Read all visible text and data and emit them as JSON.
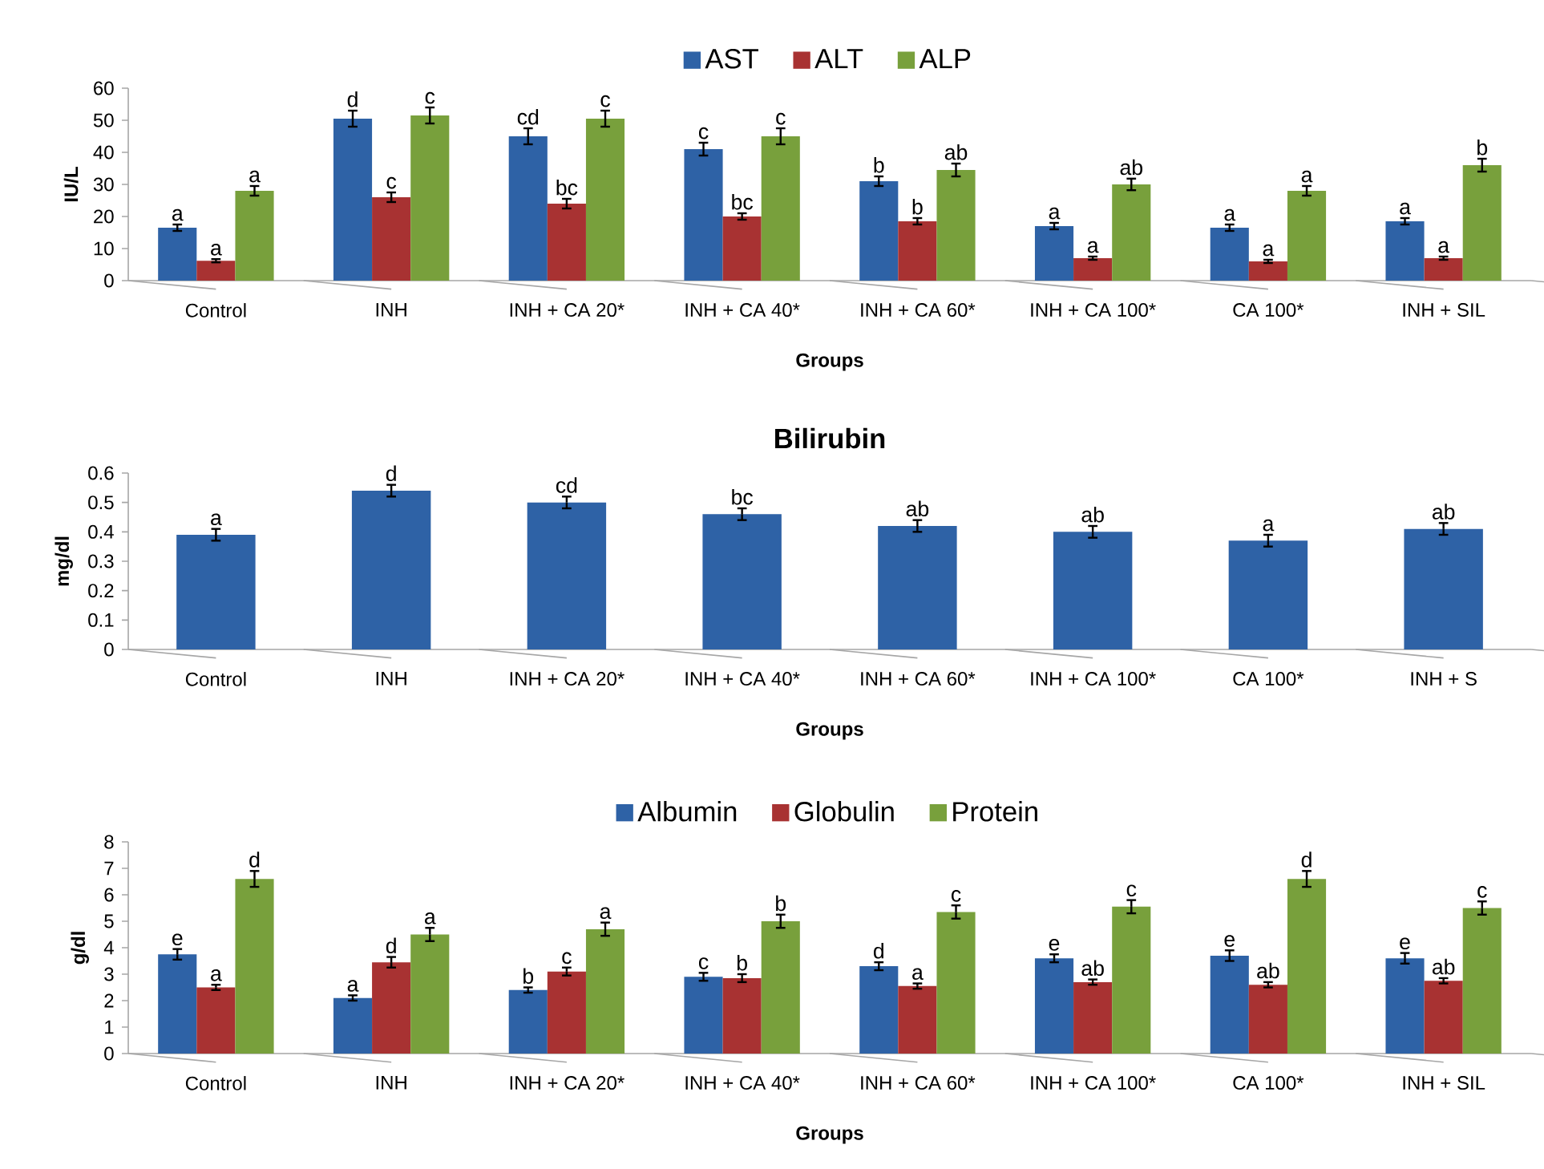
{
  "chart_data": [
    {
      "type": "bar",
      "ylabel": "IU/L",
      "xlabel": "Groups",
      "legend": "top",
      "categories": [
        "Control",
        "INH",
        "INH + CA 20*",
        "INH + CA 40*",
        "INH + CA 60*",
        "INH + CA 100*",
        "CA 100*",
        "INH + SIL"
      ],
      "ylim": [
        0,
        60
      ],
      "yticks": [
        0,
        10,
        20,
        30,
        40,
        50,
        60
      ],
      "series": [
        {
          "name": "AST",
          "color": "#2e62a6",
          "values": [
            16.5,
            50.5,
            45,
            41,
            31,
            17,
            16.5,
            18.5
          ],
          "errors": [
            1,
            2.5,
            2.5,
            2,
            1.5,
            1,
            1,
            1
          ],
          "value_labels": [
            "a",
            "d",
            "cd",
            "c",
            "b",
            "a",
            "a",
            "a"
          ]
        },
        {
          "name": "ALT",
          "color": "#a83232",
          "values": [
            6.2,
            26,
            24,
            20,
            18.5,
            7,
            6,
            7
          ],
          "errors": [
            0.5,
            1.5,
            1.5,
            1,
            1,
            0.5,
            0.5,
            0.5
          ],
          "value_labels": [
            "a",
            "c",
            "bc",
            "bc",
            "b",
            "a",
            "a",
            "a"
          ]
        },
        {
          "name": "ALP",
          "color": "#78a03c",
          "values": [
            28,
            51.5,
            50.5,
            45,
            34.5,
            30,
            28,
            36
          ],
          "errors": [
            1.5,
            2.5,
            2.5,
            2.5,
            2,
            1.8,
            1.5,
            2
          ],
          "value_labels": [
            "a",
            "c",
            "c",
            "c",
            "ab",
            "ab",
            "a",
            "b"
          ]
        }
      ]
    },
    {
      "type": "bar",
      "title": "Bilirubin",
      "ylabel": "mg/dl",
      "xlabel": "Groups",
      "categories": [
        "Control",
        "INH",
        "INH + CA 20*",
        "INH + CA 40*",
        "INH + CA 60*",
        "INH + CA 100*",
        "CA 100*",
        "INH + S"
      ],
      "ylim": [
        0,
        0.6
      ],
      "yticks": [
        0,
        0.1,
        0.2,
        0.3,
        0.4,
        0.5,
        0.6
      ],
      "series": [
        {
          "color": "#2e62a6",
          "values": [
            0.39,
            0.54,
            0.5,
            0.46,
            0.42,
            0.4,
            0.37,
            0.41
          ],
          "errors": [
            0.02,
            0.02,
            0.02,
            0.02,
            0.02,
            0.02,
            0.02,
            0.02
          ],
          "value_labels": [
            "a",
            "d",
            "cd",
            "bc",
            "ab",
            "ab",
            "a",
            "ab"
          ]
        }
      ]
    },
    {
      "type": "bar",
      "ylabel": "g/dl",
      "xlabel": "Groups",
      "legend": "top",
      "categories": [
        "Control",
        "INH",
        "INH + CA 20*",
        "INH + CA 40*",
        "INH + CA 60*",
        "INH + CA 100*",
        "CA 100*",
        "INH + SIL"
      ],
      "ylim": [
        0,
        8
      ],
      "yticks": [
        0,
        1,
        2,
        3,
        4,
        5,
        6,
        7,
        8
      ],
      "series": [
        {
          "name": "Albumin",
          "color": "#2e62a6",
          "values": [
            3.75,
            2.1,
            2.4,
            2.9,
            3.3,
            3.6,
            3.7,
            3.6
          ],
          "errors": [
            0.2,
            0.1,
            0.1,
            0.15,
            0.15,
            0.15,
            0.2,
            0.2
          ],
          "value_labels": [
            "e",
            "a",
            "b",
            "c",
            "d",
            "e",
            "e",
            "e"
          ]
        },
        {
          "name": "Globulin",
          "color": "#a83232",
          "values": [
            2.5,
            3.45,
            3.1,
            2.85,
            2.55,
            2.7,
            2.6,
            2.75
          ],
          "errors": [
            0.1,
            0.2,
            0.15,
            0.15,
            0.1,
            0.1,
            0.1,
            0.1
          ],
          "value_labels": [
            "a",
            "d",
            "c",
            "b",
            "a",
            "ab",
            "ab",
            "ab"
          ]
        },
        {
          "name": "Protein",
          "color": "#78a03c",
          "values": [
            6.6,
            4.5,
            4.7,
            5.0,
            5.35,
            5.55,
            6.6,
            5.5
          ],
          "errors": [
            0.3,
            0.25,
            0.25,
            0.25,
            0.25,
            0.25,
            0.3,
            0.25
          ],
          "value_labels": [
            "d",
            "a",
            "a",
            "b",
            "c",
            "c",
            "d",
            "c"
          ]
        }
      ]
    }
  ]
}
